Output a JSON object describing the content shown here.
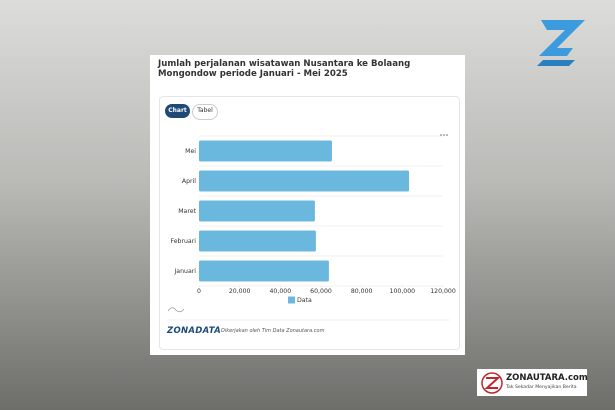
{
  "chart_data": {
    "type": "bar",
    "orientation": "horizontal",
    "title": "Jumlah perjalanan wisatawan Nusantara ke Bolaang Mongondow periode Januari - Mei 2025",
    "categories": [
      "Mei",
      "April",
      "Maret",
      "Februari",
      "Januari"
    ],
    "series": [
      {
        "name": "Data",
        "color": "#6bb8df",
        "values": [
          65400,
          103300,
          57000,
          57500,
          63900
        ]
      }
    ],
    "xlim": [
      0,
      120000
    ],
    "xticks": [
      0,
      {
        "value": 20000,
        "label": "20,000"
      },
      {
        "value": 40000,
        "label": "40,000"
      },
      {
        "value": 60000,
        "label": "60,000"
      },
      {
        "value": 80000,
        "label": "80,000"
      },
      {
        "value": 100000,
        "label": "100,000"
      },
      {
        "value": 120000,
        "label": "120,000"
      }
    ],
    "grid": true,
    "legend": "bottom"
  },
  "page": {
    "buttons": [
      "Chart",
      "Tabel"
    ],
    "footer": {
      "logo": "ZONADATA",
      "credit": "Dikerjakan oleh Tim Data Zonautara.com"
    },
    "brand": {
      "name": "ZONAUTARA.com",
      "tagline": "Tak Sekadar Menyajikan Berita"
    }
  }
}
